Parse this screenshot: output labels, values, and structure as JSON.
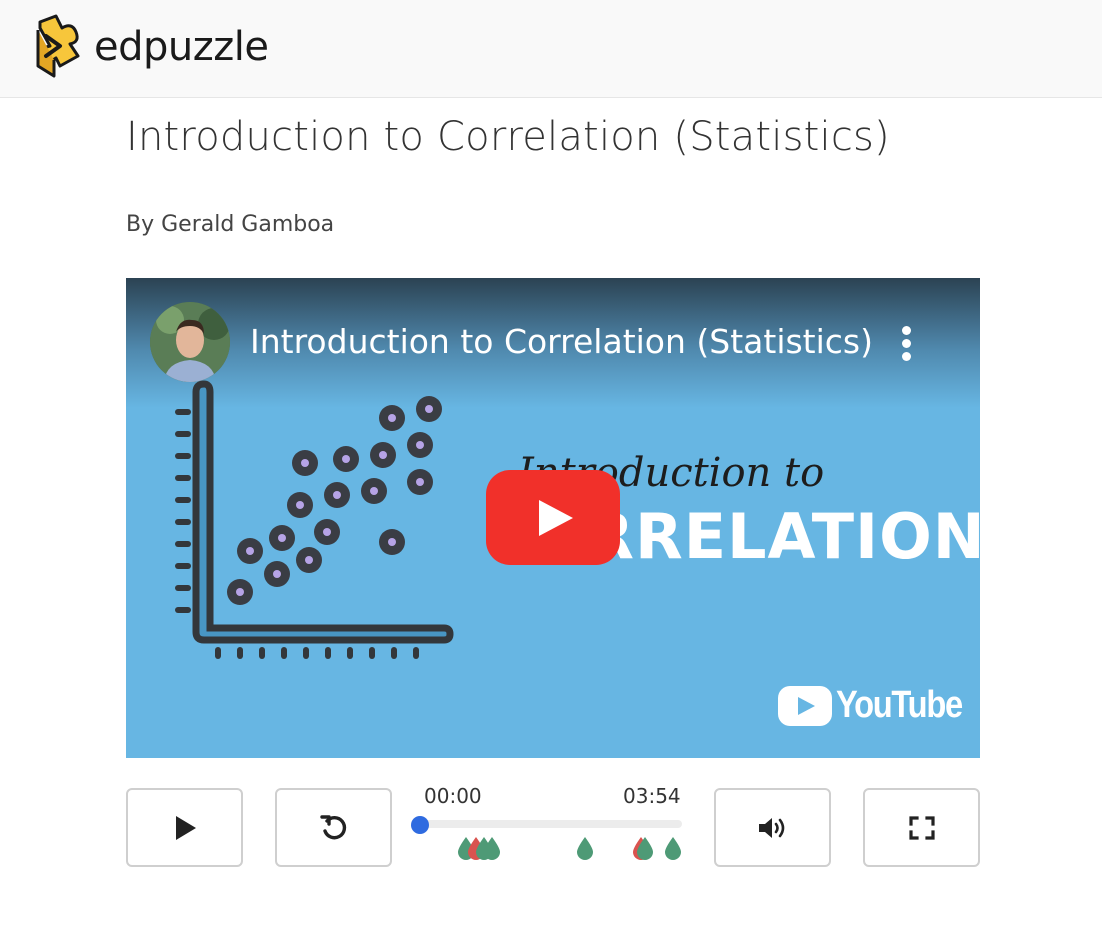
{
  "brand": {
    "name": "edpuzzle"
  },
  "page": {
    "title": "Introduction to Correlation (Statistics)",
    "author": "By Gerald Gamboa"
  },
  "video": {
    "title": "Introduction to Correlation (Statistics)",
    "thumbnail_line1": "Introduction to",
    "thumbnail_line2": "CORRELATION",
    "platform": "YouTube"
  },
  "player": {
    "current_time": "00:00",
    "duration": "03:54",
    "progress": 0
  },
  "icons": {
    "play": "play-icon",
    "replay": "replay-icon",
    "volume": "volume-icon",
    "fullscreen": "fullscreen-icon"
  },
  "colors": {
    "accent": "#2f6be0",
    "youtube_red": "#f1302a",
    "marker_green": "#4e9a76",
    "marker_red": "#d9534f",
    "logo_yellow": "#f7c63b"
  }
}
